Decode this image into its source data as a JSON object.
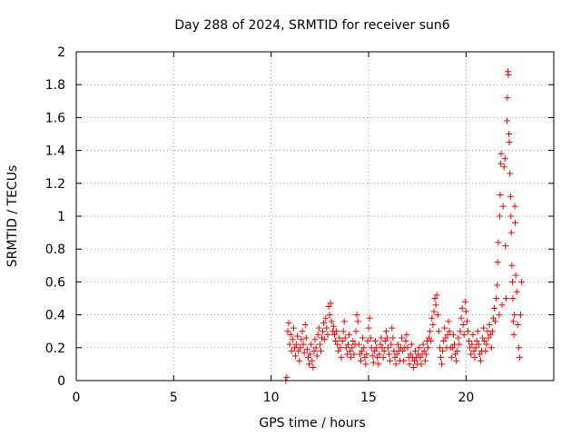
{
  "chart_data": {
    "type": "scatter",
    "title": "Day 288 of 2024, SRMTID for receiver sun6",
    "xlabel": "GPS time / hours",
    "ylabel": "SRMTID / TECUs",
    "xlim": [
      0,
      24.5
    ],
    "ylim": [
      0,
      2
    ],
    "x_ticks": [
      0,
      5,
      10,
      15,
      20
    ],
    "x_tick_labels": [
      "0",
      "5",
      "10",
      "15",
      "20"
    ],
    "y_ticks": [
      0,
      0.2,
      0.4,
      0.6,
      0.8,
      1,
      1.2,
      1.4,
      1.6,
      1.8,
      2
    ],
    "y_tick_labels": [
      "0",
      "0.2",
      "0.4",
      "0.6",
      "0.8",
      "1",
      "1.2",
      "1.4",
      "1.6",
      "1.8",
      "2"
    ],
    "grid": true,
    "marker": "+",
    "color": "#ff0000",
    "series": [
      {
        "name": "SRMTID",
        "points": [
          [
            10.75,
            0.0
          ],
          [
            10.8,
            0.02
          ],
          [
            10.85,
            0.3
          ],
          [
            10.9,
            0.35
          ],
          [
            10.95,
            0.22
          ],
          [
            11.0,
            0.28
          ],
          [
            11.05,
            0.18
          ],
          [
            11.1,
            0.25
          ],
          [
            11.15,
            0.32
          ],
          [
            11.2,
            0.2
          ],
          [
            11.25,
            0.15
          ],
          [
            11.3,
            0.22
          ],
          [
            11.35,
            0.27
          ],
          [
            11.4,
            0.18
          ],
          [
            11.45,
            0.12
          ],
          [
            11.5,
            0.2
          ],
          [
            11.55,
            0.25
          ],
          [
            11.6,
            0.3
          ],
          [
            11.65,
            0.22
          ],
          [
            11.7,
            0.17
          ],
          [
            11.75,
            0.34
          ],
          [
            11.8,
            0.26
          ],
          [
            11.85,
            0.19
          ],
          [
            11.9,
            0.14
          ],
          [
            11.95,
            0.1
          ],
          [
            12.0,
            0.16
          ],
          [
            12.05,
            0.22
          ],
          [
            12.1,
            0.12
          ],
          [
            12.15,
            0.08
          ],
          [
            12.2,
            0.18
          ],
          [
            12.25,
            0.25
          ],
          [
            12.3,
            0.2
          ],
          [
            12.35,
            0.15
          ],
          [
            12.4,
            0.28
          ],
          [
            12.45,
            0.32
          ],
          [
            12.5,
            0.22
          ],
          [
            12.55,
            0.18
          ],
          [
            12.6,
            0.26
          ],
          [
            12.65,
            0.3
          ],
          [
            12.7,
            0.35
          ],
          [
            12.75,
            0.25
          ],
          [
            12.8,
            0.38
          ],
          [
            12.85,
            0.32
          ],
          [
            12.9,
            0.28
          ],
          [
            12.95,
            0.45
          ],
          [
            13.0,
            0.4
          ],
          [
            13.05,
            0.47
          ],
          [
            13.1,
            0.36
          ],
          [
            13.15,
            0.3
          ],
          [
            13.2,
            0.33
          ],
          [
            13.25,
            0.28
          ],
          [
            13.3,
            0.24
          ],
          [
            13.35,
            0.3
          ],
          [
            13.4,
            0.22
          ],
          [
            13.45,
            0.18
          ],
          [
            13.5,
            0.26
          ],
          [
            13.55,
            0.2
          ],
          [
            13.6,
            0.14
          ],
          [
            13.65,
            0.24
          ],
          [
            13.7,
            0.3
          ],
          [
            13.75,
            0.36
          ],
          [
            13.8,
            0.26
          ],
          [
            13.85,
            0.2
          ],
          [
            13.9,
            0.16
          ],
          [
            13.95,
            0.22
          ],
          [
            14.0,
            0.28
          ],
          [
            14.05,
            0.18
          ],
          [
            14.1,
            0.14
          ],
          [
            14.15,
            0.2
          ],
          [
            14.2,
            0.24
          ],
          [
            14.25,
            0.16
          ],
          [
            14.3,
            0.22
          ],
          [
            14.35,
            0.3
          ],
          [
            14.4,
            0.4
          ],
          [
            14.45,
            0.36
          ],
          [
            14.5,
            0.22
          ],
          [
            14.55,
            0.16
          ],
          [
            14.6,
            0.12
          ],
          [
            14.65,
            0.18
          ],
          [
            14.7,
            0.26
          ],
          [
            14.75,
            0.2
          ],
          [
            14.8,
            0.14
          ],
          [
            14.85,
            0.1
          ],
          [
            14.9,
            0.16
          ],
          [
            14.95,
            0.24
          ],
          [
            15.0,
            0.32
          ],
          [
            15.05,
            0.38
          ],
          [
            15.1,
            0.26
          ],
          [
            15.15,
            0.2
          ],
          [
            15.2,
            0.15
          ],
          [
            15.25,
            0.11
          ],
          [
            15.3,
            0.18
          ],
          [
            15.35,
            0.24
          ],
          [
            15.4,
            0.2
          ],
          [
            15.45,
            0.14
          ],
          [
            15.5,
            0.1
          ],
          [
            15.55,
            0.16
          ],
          [
            15.6,
            0.22
          ],
          [
            15.65,
            0.26
          ],
          [
            15.7,
            0.2
          ],
          [
            15.75,
            0.14
          ],
          [
            15.8,
            0.18
          ],
          [
            15.85,
            0.24
          ],
          [
            15.9,
            0.3
          ],
          [
            15.95,
            0.26
          ],
          [
            16.0,
            0.2
          ],
          [
            16.05,
            0.16
          ],
          [
            16.1,
            0.12
          ],
          [
            16.15,
            0.22
          ],
          [
            16.2,
            0.32
          ],
          [
            16.25,
            0.26
          ],
          [
            16.3,
            0.18
          ],
          [
            16.35,
            0.14
          ],
          [
            16.4,
            0.1
          ],
          [
            16.45,
            0.16
          ],
          [
            16.5,
            0.22
          ],
          [
            16.55,
            0.18
          ],
          [
            16.6,
            0.12
          ],
          [
            16.65,
            0.2
          ],
          [
            16.7,
            0.26
          ],
          [
            16.75,
            0.18
          ],
          [
            16.8,
            0.12
          ],
          [
            16.85,
            0.2
          ],
          [
            16.9,
            0.24
          ],
          [
            16.95,
            0.28
          ],
          [
            17.0,
            0.2
          ],
          [
            17.05,
            0.14
          ],
          [
            17.1,
            0.1
          ],
          [
            17.15,
            0.16
          ],
          [
            17.2,
            0.22
          ],
          [
            17.25,
            0.14
          ],
          [
            17.3,
            0.08
          ],
          [
            17.35,
            0.12
          ],
          [
            17.4,
            0.18
          ],
          [
            17.45,
            0.14
          ],
          [
            17.5,
            0.1
          ],
          [
            17.55,
            0.16
          ],
          [
            17.6,
            0.2
          ],
          [
            17.65,
            0.14
          ],
          [
            17.7,
            0.1
          ],
          [
            17.75,
            0.16
          ],
          [
            17.8,
            0.22
          ],
          [
            17.85,
            0.18
          ],
          [
            17.9,
            0.12
          ],
          [
            17.95,
            0.16
          ],
          [
            18.0,
            0.24
          ],
          [
            18.05,
            0.2
          ],
          [
            18.1,
            0.26
          ],
          [
            18.15,
            0.3
          ],
          [
            18.2,
            0.24
          ],
          [
            18.25,
            0.38
          ],
          [
            18.3,
            0.34
          ],
          [
            18.35,
            0.42
          ],
          [
            18.4,
            0.5
          ],
          [
            18.45,
            0.46
          ],
          [
            18.5,
            0.52
          ],
          [
            18.55,
            0.4
          ],
          [
            18.6,
            0.3
          ],
          [
            18.65,
            0.2
          ],
          [
            18.7,
            0.14
          ],
          [
            18.75,
            0.1
          ],
          [
            18.8,
            0.18
          ],
          [
            18.85,
            0.24
          ],
          [
            18.9,
            0.32
          ],
          [
            18.95,
            0.26
          ],
          [
            19.0,
            0.2
          ],
          [
            19.05,
            0.28
          ],
          [
            19.1,
            0.36
          ],
          [
            19.15,
            0.3
          ],
          [
            19.2,
            0.2
          ],
          [
            19.25,
            0.14
          ],
          [
            19.3,
            0.2
          ],
          [
            19.35,
            0.28
          ],
          [
            19.4,
            0.22
          ],
          [
            19.45,
            0.16
          ],
          [
            19.5,
            0.12
          ],
          [
            19.55,
            0.18
          ],
          [
            19.6,
            0.26
          ],
          [
            19.65,
            0.22
          ],
          [
            19.7,
            0.3
          ],
          [
            19.75,
            0.38
          ],
          [
            19.8,
            0.44
          ],
          [
            19.85,
            0.34
          ],
          [
            19.9,
            0.28
          ],
          [
            19.95,
            0.48
          ],
          [
            20.0,
            0.42
          ],
          [
            20.05,
            0.36
          ],
          [
            20.1,
            0.3
          ],
          [
            20.15,
            0.24
          ],
          [
            20.2,
            0.2
          ],
          [
            20.25,
            0.16
          ],
          [
            20.3,
            0.22
          ],
          [
            20.35,
            0.28
          ],
          [
            20.4,
            0.18
          ],
          [
            20.45,
            0.14
          ],
          [
            20.5,
            0.2
          ],
          [
            20.55,
            0.24
          ],
          [
            20.6,
            0.3
          ],
          [
            20.65,
            0.22
          ],
          [
            20.7,
            0.16
          ],
          [
            20.75,
            0.12
          ],
          [
            20.8,
            0.18
          ],
          [
            20.85,
            0.26
          ],
          [
            20.9,
            0.32
          ],
          [
            20.95,
            0.24
          ],
          [
            21.0,
            0.18
          ],
          [
            21.05,
            0.22
          ],
          [
            21.1,
            0.3
          ],
          [
            21.15,
            0.26
          ],
          [
            21.2,
            0.34
          ],
          [
            21.25,
            0.28
          ],
          [
            21.3,
            0.2
          ],
          [
            21.35,
            0.3
          ],
          [
            21.4,
            0.38
          ],
          [
            21.45,
            0.44
          ],
          [
            21.5,
            0.36
          ],
          [
            21.55,
            0.5
          ],
          [
            21.6,
            0.58
          ],
          [
            21.62,
            0.72
          ],
          [
            21.65,
            0.84
          ],
          [
            21.7,
            0.4
          ],
          [
            21.72,
            1.0
          ],
          [
            21.75,
            1.13
          ],
          [
            21.78,
            1.32
          ],
          [
            21.8,
            1.38
          ],
          [
            21.85,
            0.46
          ],
          [
            21.9,
            1.06
          ],
          [
            21.95,
            1.3
          ],
          [
            22.0,
            1.35
          ],
          [
            22.02,
            0.82
          ],
          [
            22.05,
            0.5
          ],
          [
            22.1,
            1.58
          ],
          [
            22.12,
            1.72
          ],
          [
            22.15,
            1.88
          ],
          [
            22.17,
            1.86
          ],
          [
            22.2,
            1.5
          ],
          [
            22.22,
            1.45
          ],
          [
            22.25,
            1.26
          ],
          [
            22.28,
            1.12
          ],
          [
            22.3,
            1.0
          ],
          [
            22.32,
            0.9
          ],
          [
            22.35,
            0.7
          ],
          [
            22.38,
            0.6
          ],
          [
            22.4,
            0.5
          ],
          [
            22.42,
            0.36
          ],
          [
            22.45,
            0.28
          ],
          [
            22.48,
            0.4
          ],
          [
            22.5,
            1.06
          ],
          [
            22.52,
            0.96
          ],
          [
            22.55,
            0.64
          ],
          [
            22.6,
            0.54
          ],
          [
            22.65,
            0.34
          ],
          [
            22.7,
            0.2
          ],
          [
            22.75,
            0.14
          ],
          [
            22.8,
            0.4
          ],
          [
            22.85,
            0.6
          ]
        ]
      }
    ]
  }
}
